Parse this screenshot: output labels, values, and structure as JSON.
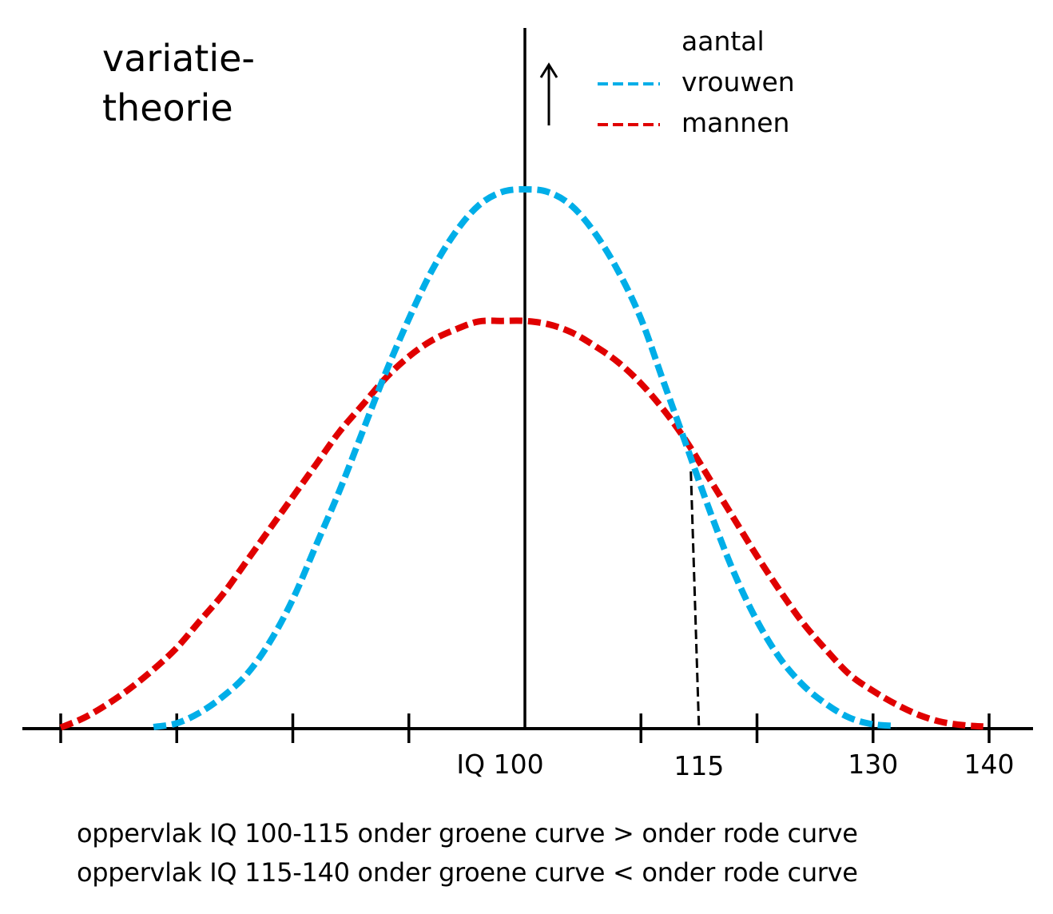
{
  "chart_data": {
    "type": "line",
    "title": [
      "variatie-",
      "theorie"
    ],
    "xlabel": "IQ",
    "ylabel": "aantal",
    "ylabel_arrow": "up-arrow",
    "xlim": [
      58,
      144
    ],
    "ylim": [
      0,
      1.0
    ],
    "x_ticks": [
      60,
      70,
      80,
      90,
      100,
      110,
      120,
      130,
      140
    ],
    "x_tick_labels": [
      {
        "value": 100,
        "label": "IQ 100"
      },
      {
        "value": 115,
        "label": "115"
      },
      {
        "value": 130,
        "label": "130"
      },
      {
        "value": 140,
        "label": "140"
      }
    ],
    "grid": false,
    "legend": {
      "placement": "top-right",
      "title": "aantal",
      "entries": [
        {
          "name": "vrouwen",
          "color": "#00aee8",
          "style": "dashed"
        },
        {
          "name": "mannen",
          "color": "#e00000",
          "style": "dashed"
        }
      ]
    },
    "series": [
      {
        "name": "vrouwen",
        "color": "#00aee8",
        "style": "dashed",
        "points": [
          [
            68.0,
            0.003
          ],
          [
            70.0,
            0.01
          ],
          [
            72.0,
            0.03
          ],
          [
            74.0,
            0.06
          ],
          [
            76.0,
            0.1
          ],
          [
            78.0,
            0.16
          ],
          [
            80.0,
            0.24
          ],
          [
            82.0,
            0.34
          ],
          [
            84.0,
            0.44
          ],
          [
            86.0,
            0.55
          ],
          [
            88.0,
            0.66
          ],
          [
            90.0,
            0.76
          ],
          [
            92.0,
            0.85
          ],
          [
            94.0,
            0.92
          ],
          [
            96.0,
            0.97
          ],
          [
            98.0,
            0.995
          ],
          [
            100.0,
            1.0
          ],
          [
            102.0,
            0.995
          ],
          [
            104.0,
            0.97
          ],
          [
            106.0,
            0.92
          ],
          [
            108.0,
            0.85
          ],
          [
            110.0,
            0.76
          ],
          [
            112.0,
            0.64
          ],
          [
            114.0,
            0.52
          ],
          [
            116.0,
            0.4
          ],
          [
            118.0,
            0.29
          ],
          [
            120.0,
            0.2
          ],
          [
            122.0,
            0.13
          ],
          [
            124.0,
            0.08
          ],
          [
            126.0,
            0.045
          ],
          [
            128.0,
            0.02
          ],
          [
            130.0,
            0.008
          ],
          [
            132.0,
            0.005
          ]
        ]
      },
      {
        "name": "mannen",
        "color": "#e00000",
        "style": "dashed",
        "points": [
          [
            60.0,
            0.002
          ],
          [
            62.0,
            0.02
          ],
          [
            64.0,
            0.045
          ],
          [
            66.0,
            0.075
          ],
          [
            68.0,
            0.11
          ],
          [
            70.0,
            0.15
          ],
          [
            72.0,
            0.2
          ],
          [
            74.0,
            0.25
          ],
          [
            76.0,
            0.31
          ],
          [
            78.0,
            0.37
          ],
          [
            80.0,
            0.43
          ],
          [
            82.0,
            0.49
          ],
          [
            84.0,
            0.55
          ],
          [
            86.0,
            0.6
          ],
          [
            88.0,
            0.65
          ],
          [
            90.0,
            0.69
          ],
          [
            92.0,
            0.72
          ],
          [
            94.0,
            0.74
          ],
          [
            96.0,
            0.755
          ],
          [
            98.0,
            0.756
          ],
          [
            100.0,
            0.756
          ],
          [
            102.0,
            0.75
          ],
          [
            104.0,
            0.735
          ],
          [
            106.0,
            0.71
          ],
          [
            108.0,
            0.68
          ],
          [
            110.0,
            0.64
          ],
          [
            112.0,
            0.59
          ],
          [
            114.0,
            0.53
          ],
          [
            116.0,
            0.46
          ],
          [
            118.0,
            0.39
          ],
          [
            120.0,
            0.32
          ],
          [
            122.0,
            0.255
          ],
          [
            124.0,
            0.195
          ],
          [
            126.0,
            0.145
          ],
          [
            128.0,
            0.1
          ],
          [
            130.0,
            0.07
          ],
          [
            132.0,
            0.045
          ],
          [
            134.0,
            0.025
          ],
          [
            136.0,
            0.012
          ],
          [
            138.0,
            0.006
          ],
          [
            139.5,
            0.004
          ]
        ]
      }
    ],
    "annotations": [
      {
        "type": "dashed-drop-line",
        "from": [
          114.3,
          0.477
        ],
        "to": [
          115.0,
          0.0
        ],
        "color": "#000000"
      }
    ],
    "caption": [
      "oppervlak IQ 100-115 onder groene curve > onder rode curve",
      "oppervlak IQ 115-140 onder groene curve < onder rode curve"
    ]
  }
}
